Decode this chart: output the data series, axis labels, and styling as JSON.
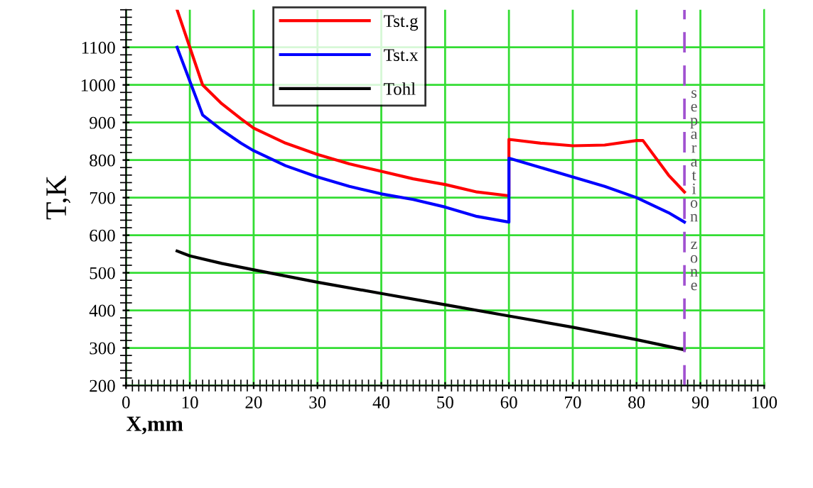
{
  "chart_data": {
    "type": "line",
    "xlabel": "X,mm",
    "ylabel": "T,K",
    "xlim": [
      0,
      100
    ],
    "xticks": [
      0,
      10,
      20,
      30,
      40,
      50,
      60,
      70,
      80,
      90,
      100
    ],
    "ylim": [
      200,
      1200
    ],
    "yticks": [
      200,
      300,
      400,
      500,
      600,
      700,
      800,
      900,
      1000,
      1100
    ],
    "grid": true,
    "legend": "top",
    "marker": "none",
    "line_style": "solid",
    "series": [
      {
        "name": "Tst.g",
        "color": "#ff0000",
        "x": [
          8,
          10,
          12,
          15,
          18,
          20,
          25,
          30,
          35,
          40,
          45,
          50,
          55,
          60,
          60,
          65,
          70,
          75,
          80,
          81,
          85,
          87.5
        ],
        "values": [
          1200,
          1100,
          1000,
          950,
          910,
          885,
          845,
          815,
          790,
          770,
          750,
          735,
          715,
          705,
          855,
          845,
          838,
          840,
          852,
          852,
          760,
          715
        ]
      },
      {
        "name": "Tst.x",
        "color": "#0000ff",
        "x": [
          8,
          12,
          15,
          18,
          20,
          25,
          30,
          35,
          40,
          45,
          50,
          55,
          60,
          60,
          65,
          70,
          75,
          80,
          85,
          87.5
        ],
        "values": [
          1100,
          920,
          880,
          845,
          825,
          785,
          755,
          730,
          710,
          695,
          675,
          650,
          635,
          805,
          780,
          755,
          730,
          700,
          660,
          635
        ]
      },
      {
        "name": "Tohl",
        "color": "#000000",
        "x": [
          8,
          10,
          15,
          20,
          30,
          40,
          50,
          60,
          70,
          80,
          87.5
        ],
        "values": [
          558,
          545,
          525,
          508,
          475,
          445,
          415,
          385,
          355,
          322,
          295
        ]
      }
    ],
    "ref_lines": [
      {
        "axis": "x",
        "value": 87.5,
        "label": "separation zone",
        "color": "#a050d0",
        "line_style": "dashed"
      }
    ]
  }
}
